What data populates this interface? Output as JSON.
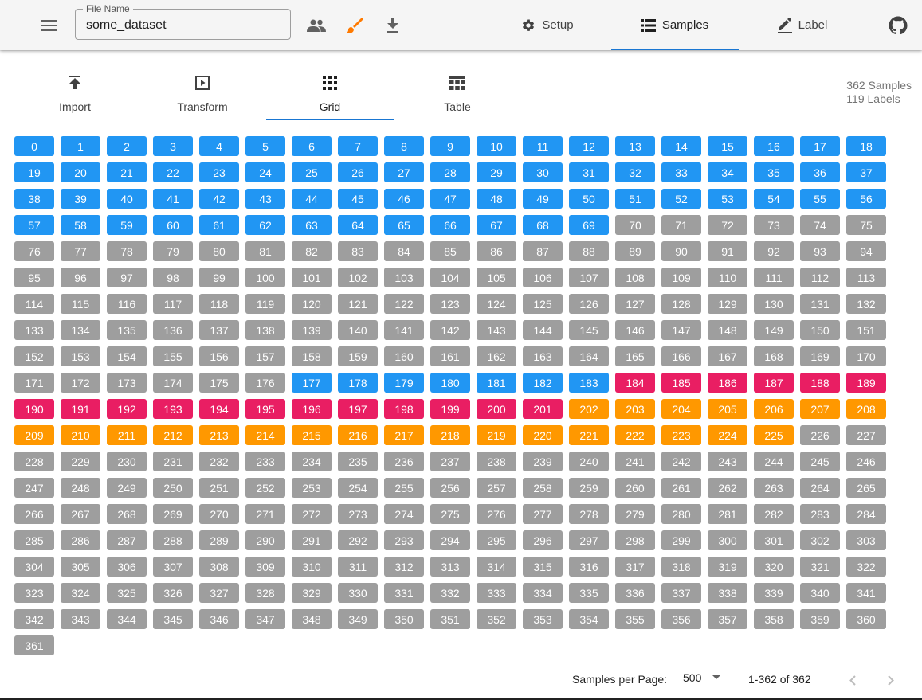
{
  "appbar": {
    "file_label": "File Name",
    "file_value": "some_dataset",
    "tabs": [
      {
        "label": "Setup",
        "icon": "gear-icon"
      },
      {
        "label": "Samples",
        "icon": "list-icon"
      },
      {
        "label": "Label",
        "icon": "pencil-icon"
      }
    ],
    "active_tab": "Samples",
    "accent_color": "#1976d2",
    "brush_color": "#ff7a00"
  },
  "subtabs": [
    {
      "label": "Import",
      "icon": "upload-icon"
    },
    {
      "label": "Transform",
      "icon": "play-box-icon"
    },
    {
      "label": "Grid",
      "icon": "grid-icon"
    },
    {
      "label": "Table",
      "icon": "table-icon"
    }
  ],
  "active_subtab": "Grid",
  "stats": {
    "samples": "362 Samples",
    "labels": "119 Labels"
  },
  "grid": {
    "total": 362,
    "columns": 19,
    "colors": {
      "blue": "#2196f3",
      "gray": "#9e9e9e",
      "pink": "#e91e63",
      "orange": "#ff9800"
    },
    "labeled_ranges": [
      {
        "from": 0,
        "to": 69,
        "color": "blue"
      },
      {
        "from": 177,
        "to": 183,
        "color": "blue"
      },
      {
        "from": 184,
        "to": 201,
        "color": "pink"
      },
      {
        "from": 202,
        "to": 225,
        "color": "orange"
      }
    ],
    "default_color": "gray"
  },
  "pagination": {
    "label": "Samples per Page:",
    "per_page": "500",
    "range": "1-362 of 362"
  }
}
